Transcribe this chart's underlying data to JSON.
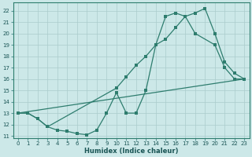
{
  "bg_color": "#cce8e8",
  "grid_color": "#aacccc",
  "line_color": "#2e7d6e",
  "xlabel": "Humidex (Indice chaleur)",
  "xlim": [
    -0.5,
    23.5
  ],
  "ylim": [
    10.8,
    22.7
  ],
  "xticks": [
    0,
    1,
    2,
    3,
    4,
    5,
    6,
    7,
    8,
    9,
    10,
    11,
    12,
    13,
    14,
    15,
    16,
    17,
    18,
    19,
    20,
    21,
    22,
    23
  ],
  "yticks": [
    11,
    12,
    13,
    14,
    15,
    16,
    17,
    18,
    19,
    20,
    21,
    22
  ],
  "curve1_x": [
    0,
    1,
    2,
    3,
    4,
    5,
    6,
    7,
    8,
    9,
    10,
    11,
    12,
    13,
    14,
    15,
    16,
    17,
    18,
    19,
    20,
    21,
    22,
    23
  ],
  "curve1_y": [
    13,
    13,
    12.5,
    11.8,
    11.5,
    11.4,
    11.2,
    11.1,
    11.5,
    13.0,
    14.8,
    13.0,
    13.0,
    15.0,
    19.0,
    21.5,
    21.8,
    21.5,
    21.8,
    22.2,
    20.0,
    17.5,
    16.5,
    16.0
  ],
  "curve2_x": [
    0,
    1,
    2,
    3,
    10,
    11,
    12,
    13,
    14,
    15,
    16,
    17,
    18,
    20,
    21,
    22,
    23
  ],
  "curve2_y": [
    13,
    13,
    12.5,
    11.8,
    15.2,
    16.2,
    17.2,
    18.0,
    19.0,
    19.5,
    20.5,
    21.5,
    20.0,
    19.0,
    17.0,
    16.0,
    16.0
  ],
  "curve3_x": [
    0,
    23
  ],
  "curve3_y": [
    13,
    16.0
  ]
}
